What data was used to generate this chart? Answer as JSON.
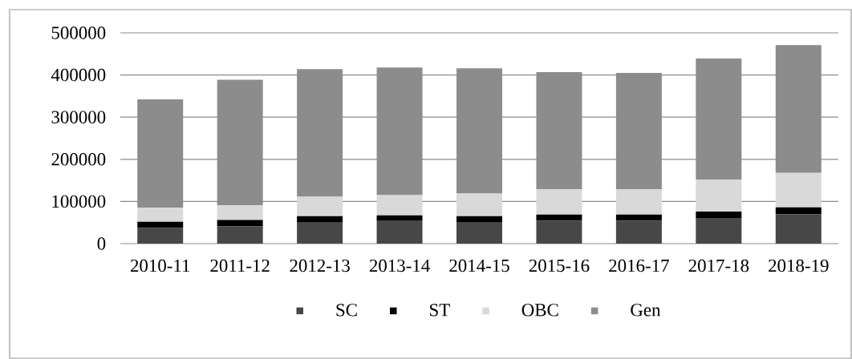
{
  "chart_data": {
    "type": "bar",
    "stacked": true,
    "categories": [
      "2010-11",
      "2011-12",
      "2012-13",
      "2013-14",
      "2014-15",
      "2015-16",
      "2016-17",
      "2017-18",
      "2018-19"
    ],
    "series": [
      {
        "name": "SC",
        "color": "#474747",
        "values": [
          37000,
          41000,
          50000,
          55000,
          50000,
          54000,
          54000,
          61000,
          70000
        ]
      },
      {
        "name": "ST",
        "color": "#000000",
        "values": [
          15000,
          15000,
          15000,
          12000,
          15000,
          15000,
          15000,
          15000,
          16000
        ]
      },
      {
        "name": "OBC",
        "color": "#d9d9d9",
        "values": [
          33000,
          35000,
          46000,
          48000,
          54000,
          60000,
          60000,
          76000,
          82000
        ]
      },
      {
        "name": "Gen",
        "color": "#8c8c8c",
        "values": [
          257000,
          298000,
          303000,
          303000,
          297000,
          278000,
          276000,
          287000,
          303000
        ]
      }
    ],
    "ylim": [
      0,
      500000
    ],
    "yticks": [
      0,
      100000,
      200000,
      300000,
      400000,
      500000
    ],
    "grid": "y",
    "legend": "bottom"
  }
}
